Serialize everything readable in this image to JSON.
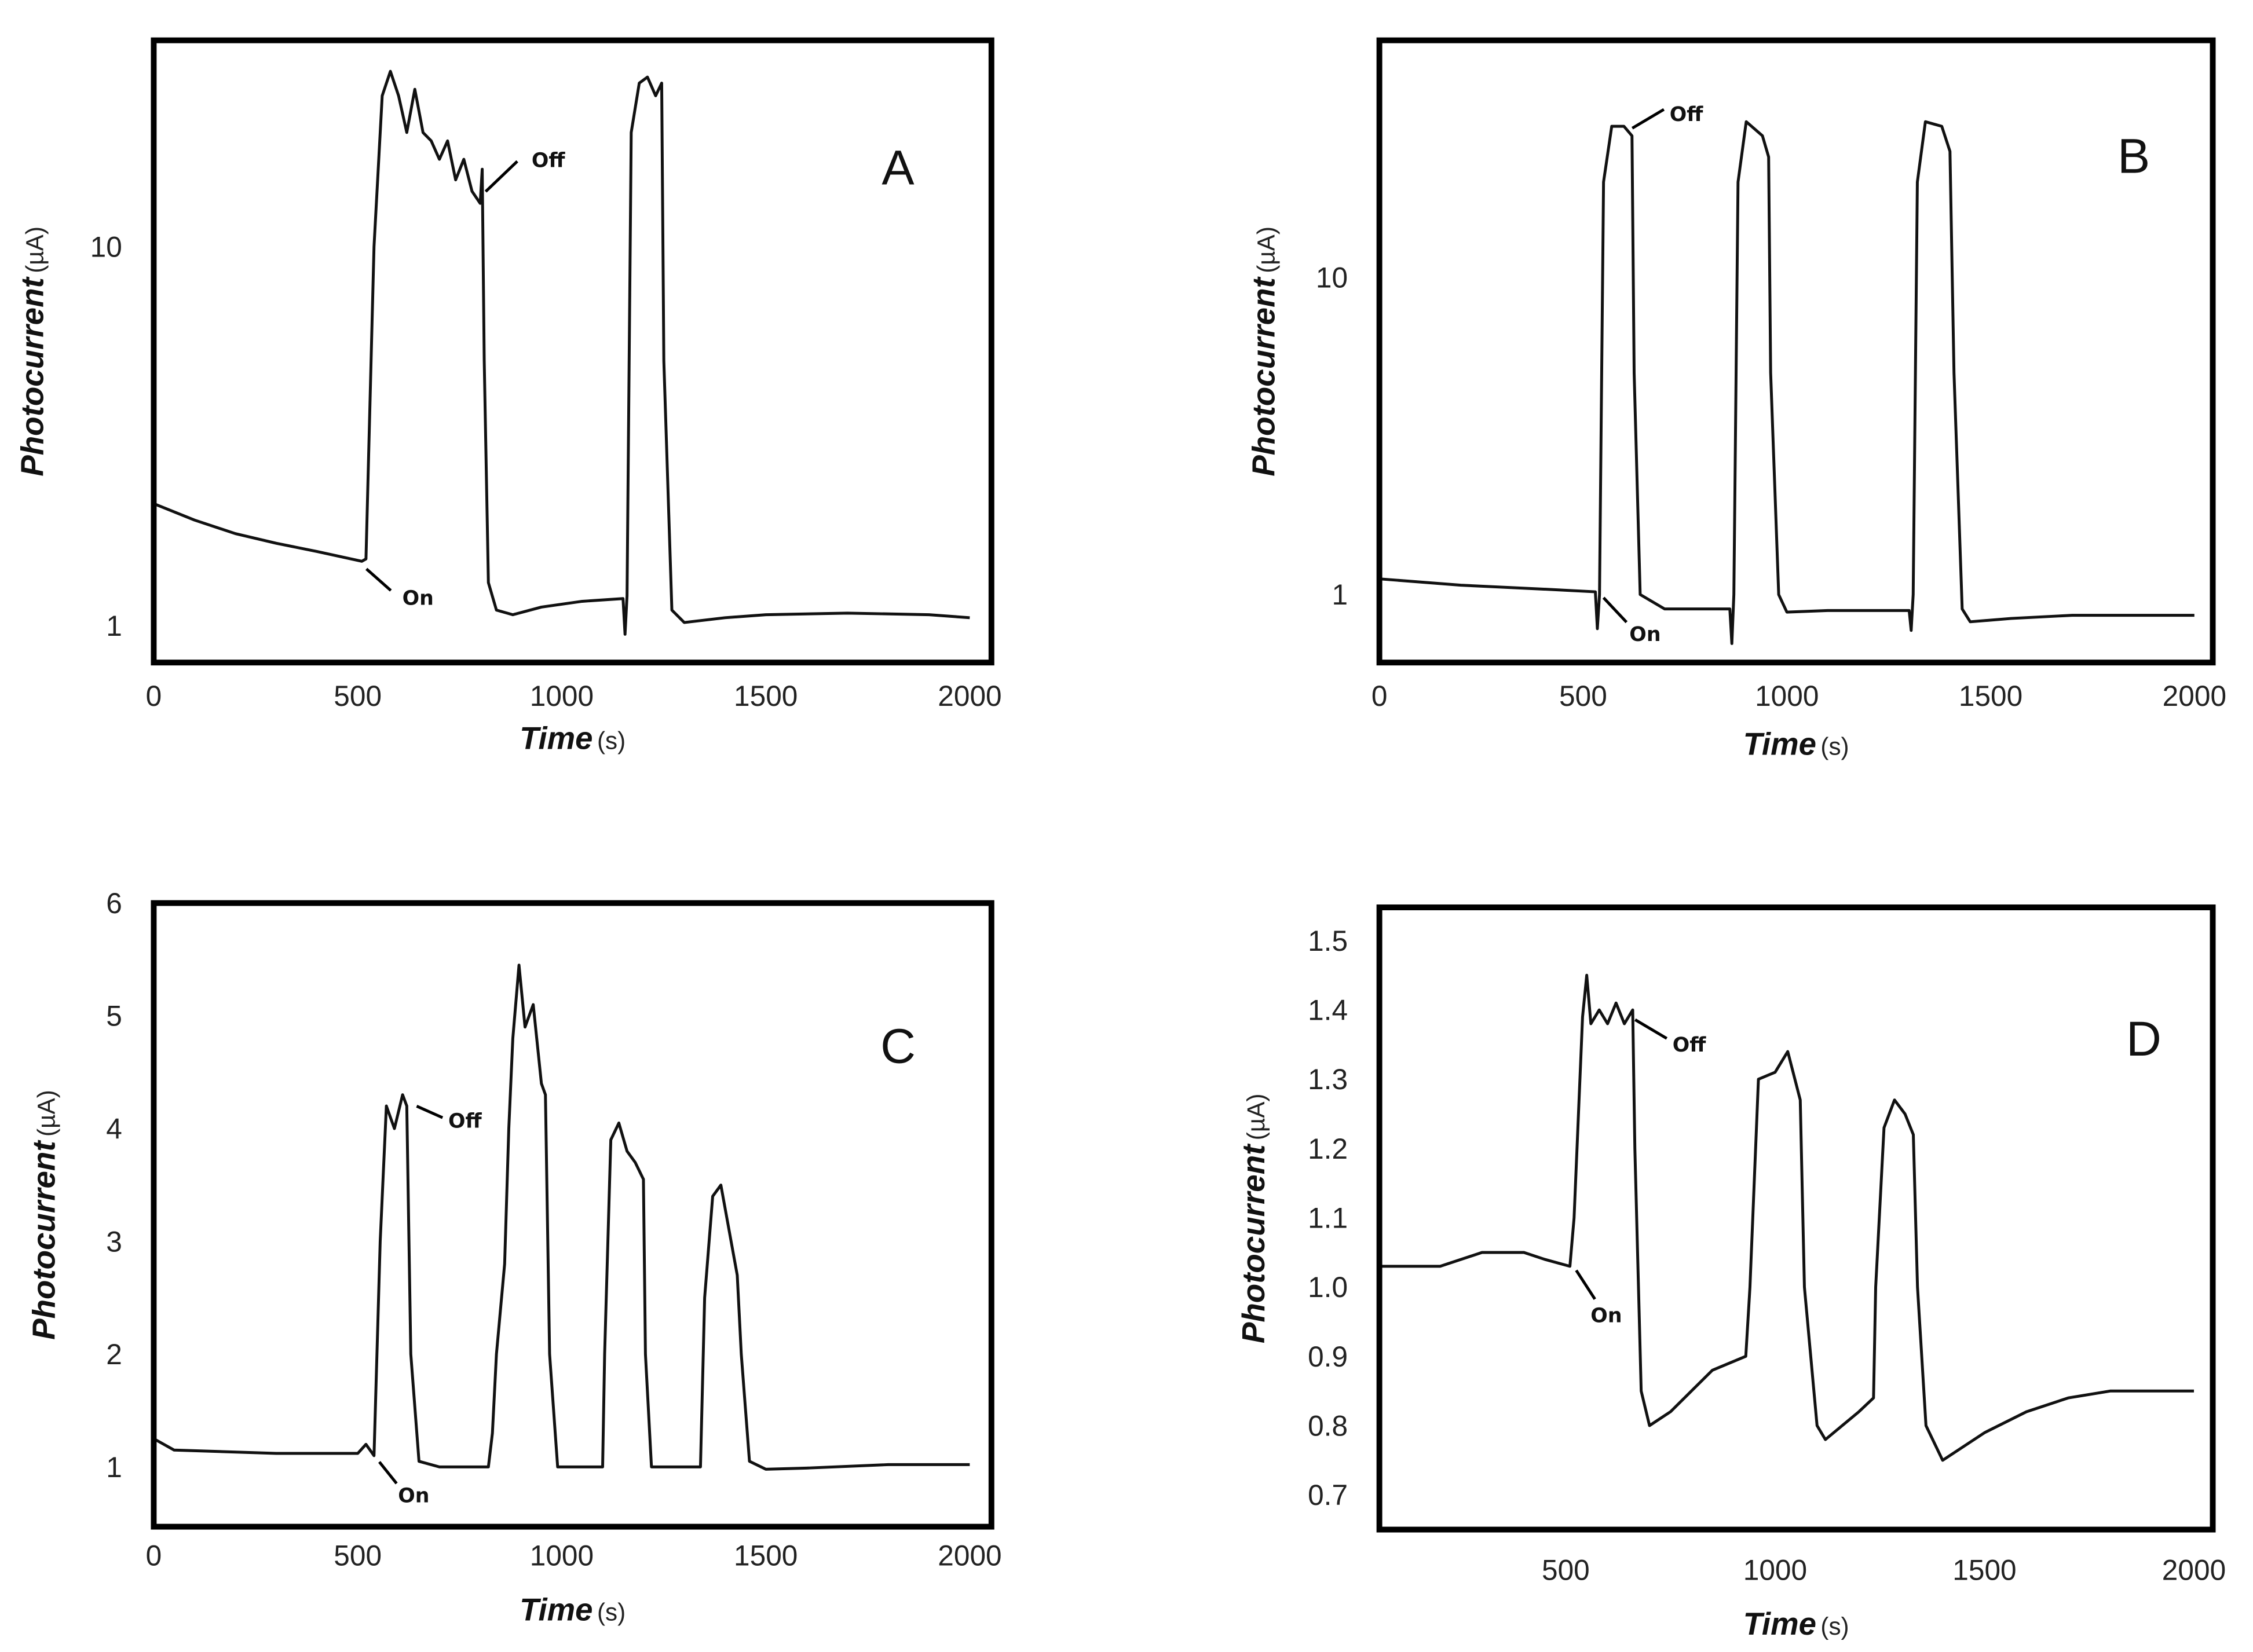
{
  "chart_data": [
    {
      "type": "line",
      "panel_label": "A",
      "xlabel": "Time",
      "xunit": "(s)",
      "ylabel": "Photocurrent",
      "yunit": "(µA)",
      "yscale": "log",
      "xlim": [
        0,
        2053
      ],
      "ylim": [
        0.8,
        35
      ],
      "xticks": [
        0,
        500,
        1000,
        1500,
        2000
      ],
      "yticks": [
        1,
        10
      ],
      "annotations": [
        "On",
        "Off"
      ],
      "series": [
        {
          "name": "photocurrent",
          "points": [
            [
              0,
              2.1
            ],
            [
              100,
              1.9
            ],
            [
              200,
              1.75
            ],
            [
              300,
              1.65
            ],
            [
              400,
              1.57
            ],
            [
              510,
              1.48
            ],
            [
              520,
              1.5
            ],
            [
              540,
              10
            ],
            [
              560,
              25
            ],
            [
              580,
              29
            ],
            [
              600,
              25
            ],
            [
              620,
              20
            ],
            [
              640,
              26
            ],
            [
              660,
              20
            ],
            [
              680,
              19
            ],
            [
              700,
              17
            ],
            [
              720,
              19
            ],
            [
              740,
              15
            ],
            [
              760,
              17
            ],
            [
              780,
              14
            ],
            [
              800,
              13
            ],
            [
              805,
              16
            ],
            [
              810,
              5
            ],
            [
              820,
              1.3
            ],
            [
              840,
              1.1
            ],
            [
              880,
              1.07
            ],
            [
              950,
              1.12
            ],
            [
              1050,
              1.16
            ],
            [
              1150,
              1.18
            ],
            [
              1155,
              0.95
            ],
            [
              1160,
              1.2
            ],
            [
              1170,
              20
            ],
            [
              1190,
              27
            ],
            [
              1210,
              28
            ],
            [
              1230,
              25
            ],
            [
              1245,
              27
            ],
            [
              1250,
              5
            ],
            [
              1270,
              1.1
            ],
            [
              1300,
              1.02
            ],
            [
              1400,
              1.05
            ],
            [
              1500,
              1.07
            ],
            [
              1700,
              1.08
            ],
            [
              1900,
              1.07
            ],
            [
              2000,
              1.05
            ]
          ]
        }
      ]
    },
    {
      "type": "line",
      "panel_label": "B",
      "xlabel": "Time",
      "xunit": "(s)",
      "ylabel": "Photocurrent",
      "yunit": "(µA)",
      "yscale": "log",
      "xlim": [
        0,
        2045
      ],
      "ylim": [
        0.61,
        56
      ],
      "xticks": [
        0,
        500,
        1000,
        1500,
        2000
      ],
      "yticks": [
        1,
        10
      ],
      "annotations": [
        "On",
        "Off"
      ],
      "series": [
        {
          "name": "photocurrent",
          "points": [
            [
              0,
              1.12
            ],
            [
              200,
              1.07
            ],
            [
              400,
              1.04
            ],
            [
              530,
              1.02
            ],
            [
              535,
              0.78
            ],
            [
              540,
              1.0
            ],
            [
              550,
              20
            ],
            [
              570,
              30
            ],
            [
              600,
              30
            ],
            [
              620,
              28
            ],
            [
              625,
              5
            ],
            [
              640,
              1.0
            ],
            [
              700,
              0.9
            ],
            [
              800,
              0.9
            ],
            [
              860,
              0.9
            ],
            [
              865,
              0.7
            ],
            [
              870,
              1.0
            ],
            [
              880,
              20
            ],
            [
              900,
              31
            ],
            [
              940,
              28
            ],
            [
              955,
              24
            ],
            [
              960,
              5
            ],
            [
              980,
              1.0
            ],
            [
              1000,
              0.88
            ],
            [
              1100,
              0.89
            ],
            [
              1300,
              0.89
            ],
            [
              1305,
              0.77
            ],
            [
              1310,
              1.0
            ],
            [
              1320,
              20
            ],
            [
              1340,
              31
            ],
            [
              1380,
              30
            ],
            [
              1400,
              25
            ],
            [
              1410,
              5
            ],
            [
              1430,
              0.9
            ],
            [
              1450,
              0.82
            ],
            [
              1550,
              0.84
            ],
            [
              1700,
              0.86
            ],
            [
              2000,
              0.86
            ]
          ]
        }
      ]
    },
    {
      "type": "line",
      "panel_label": "C",
      "xlabel": "Time",
      "xunit": "(s)",
      "ylabel": "Photocurrent",
      "yunit": "(µA)",
      "yscale": "linear",
      "xlim": [
        0,
        2053
      ],
      "ylim": [
        0.47,
        6
      ],
      "xticks": [
        0,
        500,
        1000,
        1500,
        2000
      ],
      "yticks": [
        1,
        2,
        3,
        4,
        5,
        6
      ],
      "annotations": [
        "On",
        "Off"
      ],
      "series": [
        {
          "name": "photocurrent",
          "points": [
            [
              0,
              1.25
            ],
            [
              50,
              1.15
            ],
            [
              300,
              1.12
            ],
            [
              500,
              1.12
            ],
            [
              520,
              1.2
            ],
            [
              540,
              1.1
            ],
            [
              555,
              3
            ],
            [
              570,
              4.2
            ],
            [
              590,
              4.0
            ],
            [
              610,
              4.3
            ],
            [
              620,
              4.2
            ],
            [
              630,
              2
            ],
            [
              650,
              1.05
            ],
            [
              700,
              1.0
            ],
            [
              820,
              1.0
            ],
            [
              830,
              1.3
            ],
            [
              840,
              2
            ],
            [
              860,
              2.8
            ],
            [
              870,
              4
            ],
            [
              880,
              4.8
            ],
            [
              895,
              5.45
            ],
            [
              910,
              4.9
            ],
            [
              930,
              5.1
            ],
            [
              950,
              4.4
            ],
            [
              960,
              4.3
            ],
            [
              970,
              2
            ],
            [
              990,
              1.0
            ],
            [
              1100,
              1.0
            ],
            [
              1105,
              2
            ],
            [
              1120,
              3.9
            ],
            [
              1140,
              4.05
            ],
            [
              1160,
              3.8
            ],
            [
              1180,
              3.7
            ],
            [
              1200,
              3.55
            ],
            [
              1205,
              2
            ],
            [
              1220,
              1.0
            ],
            [
              1340,
              1.0
            ],
            [
              1350,
              2.5
            ],
            [
              1370,
              3.4
            ],
            [
              1390,
              3.5
            ],
            [
              1410,
              3.1
            ],
            [
              1430,
              2.7
            ],
            [
              1440,
              2
            ],
            [
              1460,
              1.05
            ],
            [
              1500,
              0.98
            ],
            [
              1600,
              0.99
            ],
            [
              1800,
              1.02
            ],
            [
              2000,
              1.02
            ]
          ]
        }
      ]
    },
    {
      "type": "line",
      "panel_label": "D",
      "xlabel": "Time",
      "xunit": "(s)",
      "ylabel": "Photocurrent",
      "yunit": "(µA)",
      "yscale": "linear",
      "xlim": [
        55,
        2045
      ],
      "ylim": [
        0.65,
        1.548
      ],
      "xticks": [
        500,
        1000,
        1500,
        2000
      ],
      "yticks": [
        "0.7",
        "0.8",
        "0.9",
        "1.0",
        "1.1",
        "1.2",
        "1.3",
        "1.4",
        "1.5"
      ],
      "annotations": [
        "On",
        "Off"
      ],
      "series": [
        {
          "name": "photocurrent",
          "points": [
            [
              55,
              1.03
            ],
            [
              200,
              1.03
            ],
            [
              300,
              1.05
            ],
            [
              400,
              1.05
            ],
            [
              450,
              1.04
            ],
            [
              510,
              1.03
            ],
            [
              520,
              1.1
            ],
            [
              540,
              1.39
            ],
            [
              550,
              1.45
            ],
            [
              560,
              1.38
            ],
            [
              580,
              1.4
            ],
            [
              600,
              1.38
            ],
            [
              620,
              1.41
            ],
            [
              640,
              1.38
            ],
            [
              660,
              1.4
            ],
            [
              665,
              1.2
            ],
            [
              680,
              0.85
            ],
            [
              700,
              0.8
            ],
            [
              750,
              0.82
            ],
            [
              850,
              0.88
            ],
            [
              930,
              0.9
            ],
            [
              940,
              1.0
            ],
            [
              960,
              1.3
            ],
            [
              1000,
              1.31
            ],
            [
              1030,
              1.34
            ],
            [
              1060,
              1.27
            ],
            [
              1070,
              1.0
            ],
            [
              1100,
              0.8
            ],
            [
              1120,
              0.78
            ],
            [
              1200,
              0.82
            ],
            [
              1235,
              0.84
            ],
            [
              1240,
              1.0
            ],
            [
              1260,
              1.23
            ],
            [
              1285,
              1.27
            ],
            [
              1310,
              1.25
            ],
            [
              1330,
              1.22
            ],
            [
              1340,
              1.0
            ],
            [
              1360,
              0.8
            ],
            [
              1400,
              0.75
            ],
            [
              1500,
              0.79
            ],
            [
              1600,
              0.82
            ],
            [
              1700,
              0.84
            ],
            [
              1800,
              0.85
            ],
            [
              2000,
              0.85
            ]
          ]
        }
      ]
    }
  ]
}
